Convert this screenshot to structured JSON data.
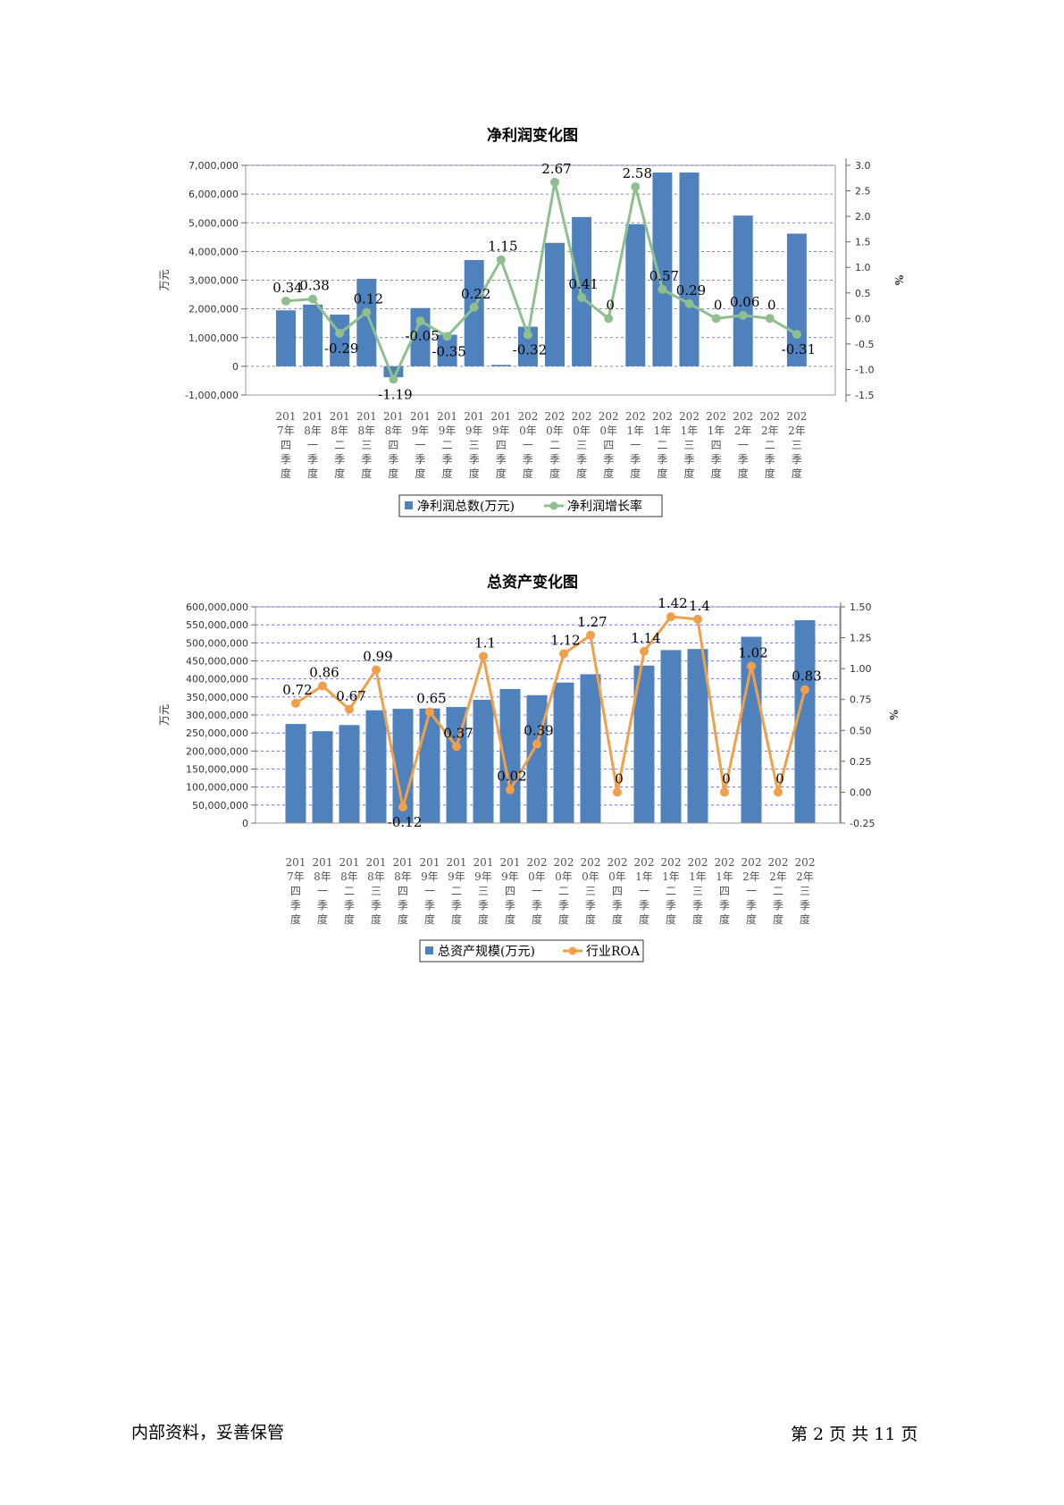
{
  "footer": {
    "left": "内部资料，妥善保管",
    "right": "第 2 页   共 11 页"
  },
  "chart_data": [
    {
      "type": "bar+line",
      "title": "净利润变化图",
      "ylabel": "万元",
      "y2label": "%",
      "categories": [
        "2017年四季度",
        "2018年一季度",
        "2018年二季度",
        "2018年三季度",
        "2018年四季度",
        "2019年一季度",
        "2019年二季度",
        "2019年三季度",
        "2019年四季度",
        "2020年一季度",
        "2020年二季度",
        "2020年三季度",
        "2020年四季度",
        "2021年一季度",
        "2021年二季度",
        "2021年三季度",
        "2021年四季度",
        "2022年一季度",
        "2022年二季度",
        "2022年三季度"
      ],
      "category_lines": [
        [
          "201",
          "7年",
          "四",
          "季",
          "度"
        ],
        [
          "201",
          "8年",
          "一",
          "季",
          "度"
        ],
        [
          "201",
          "8年",
          "二",
          "季",
          "度"
        ],
        [
          "201",
          "8年",
          "三",
          "季",
          "度"
        ],
        [
          "201",
          "8年",
          "四",
          "季",
          "度"
        ],
        [
          "201",
          "9年",
          "一",
          "季",
          "度"
        ],
        [
          "201",
          "9年",
          "二",
          "季",
          "度"
        ],
        [
          "201",
          "9年",
          "三",
          "季",
          "度"
        ],
        [
          "201",
          "9年",
          "四",
          "季",
          "度"
        ],
        [
          "202",
          "0年",
          "一",
          "季",
          "度"
        ],
        [
          "202",
          "0年",
          "二",
          "季",
          "度"
        ],
        [
          "202",
          "0年",
          "三",
          "季",
          "度"
        ],
        [
          "202",
          "0年",
          "四",
          "季",
          "度"
        ],
        [
          "202",
          "1年",
          "一",
          "季",
          "度"
        ],
        [
          "202",
          "1年",
          "二",
          "季",
          "度"
        ],
        [
          "202",
          "1年",
          "三",
          "季",
          "度"
        ],
        [
          "202",
          "1年",
          "四",
          "季",
          "度"
        ],
        [
          "202",
          "2年",
          "一",
          "季",
          "度"
        ],
        [
          "202",
          "2年",
          "二",
          "季",
          "度"
        ],
        [
          "202",
          "2年",
          "三",
          "季",
          "度"
        ]
      ],
      "ylim": [
        -1000000,
        7000000
      ],
      "yticks": [
        -1000000,
        0,
        1000000,
        2000000,
        3000000,
        4000000,
        5000000,
        6000000,
        7000000
      ],
      "yticklabels": [
        "-1,000,000",
        "0",
        "1,000,000",
        "2,000,000",
        "3,000,000",
        "4,000,000",
        "5,000,000",
        "6,000,000",
        "7,000,000"
      ],
      "y2lim": [
        -1.5,
        3.0
      ],
      "y2ticks": [
        -1.5,
        -1.0,
        -0.5,
        0.0,
        0.5,
        1.0,
        1.5,
        2.0,
        2.5,
        3.0
      ],
      "y2ticklabels": [
        "-1.5",
        "-1.0",
        "-0.5",
        "0.0",
        "0.5",
        "1.0",
        "1.5",
        "2.0",
        "2.5",
        "3.0"
      ],
      "series": [
        {
          "name": "净利润总数(万元)",
          "kind": "bar",
          "color": "#4f81bd",
          "values": [
            1950000,
            2150000,
            1800000,
            3050000,
            -380000,
            2030000,
            1100000,
            3700000,
            50000,
            1380000,
            4300000,
            5200000,
            0,
            4950000,
            6750000,
            6750000,
            0,
            5250000,
            0,
            4620000
          ]
        },
        {
          "name": "净利润增长率",
          "kind": "line",
          "color": "#8fbf8f",
          "values": [
            0.34,
            0.38,
            -0.29,
            0.12,
            -1.19,
            -0.05,
            -0.35,
            0.22,
            1.15,
            -0.32,
            2.67,
            0.41,
            0,
            2.58,
            0.57,
            0.29,
            0,
            0.06,
            0,
            -0.31
          ],
          "labels": [
            "0.34",
            "0.38",
            "-0.29",
            "0.12",
            "-1.19",
            "-0.05",
            "-0.35",
            "0.22",
            "1.15",
            "-0.32",
            "2.67",
            "0.41",
            "0",
            "2.58",
            "0.57",
            "0.29",
            "0",
            "0.06",
            "0",
            "-0.31"
          ]
        }
      ],
      "grid": true,
      "legend": "bottom"
    },
    {
      "type": "bar+line",
      "title": "总资产变化图",
      "ylabel": "万元",
      "y2label": "%",
      "categories": [
        "2017年四季度",
        "2018年一季度",
        "2018年二季度",
        "2018年三季度",
        "2018年四季度",
        "2019年一季度",
        "2019年二季度",
        "2019年三季度",
        "2019年四季度",
        "2020年一季度",
        "2020年二季度",
        "2020年三季度",
        "2020年四季度",
        "2021年一季度",
        "2021年二季度",
        "2021年三季度",
        "2021年四季度",
        "2022年一季度",
        "2022年二季度",
        "2022年三季度"
      ],
      "category_lines": [
        [
          "201",
          "7年",
          "四",
          "季",
          "度"
        ],
        [
          "201",
          "8年",
          "一",
          "季",
          "度"
        ],
        [
          "201",
          "8年",
          "二",
          "季",
          "度"
        ],
        [
          "201",
          "8年",
          "三",
          "季",
          "度"
        ],
        [
          "201",
          "8年",
          "四",
          "季",
          "度"
        ],
        [
          "201",
          "9年",
          "一",
          "季",
          "度"
        ],
        [
          "201",
          "9年",
          "二",
          "季",
          "度"
        ],
        [
          "201",
          "9年",
          "三",
          "季",
          "度"
        ],
        [
          "201",
          "9年",
          "四",
          "季",
          "度"
        ],
        [
          "202",
          "0年",
          "一",
          "季",
          "度"
        ],
        [
          "202",
          "0年",
          "二",
          "季",
          "度"
        ],
        [
          "202",
          "0年",
          "三",
          "季",
          "度"
        ],
        [
          "202",
          "0年",
          "四",
          "季",
          "度"
        ],
        [
          "202",
          "1年",
          "一",
          "季",
          "度"
        ],
        [
          "202",
          "1年",
          "二",
          "季",
          "度"
        ],
        [
          "202",
          "1年",
          "三",
          "季",
          "度"
        ],
        [
          "202",
          "1年",
          "四",
          "季",
          "度"
        ],
        [
          "202",
          "2年",
          "一",
          "季",
          "度"
        ],
        [
          "202",
          "2年",
          "二",
          "季",
          "度"
        ],
        [
          "202",
          "2年",
          "三",
          "季",
          "度"
        ]
      ],
      "ylim": [
        0,
        600000000
      ],
      "yticks": [
        0,
        50000000,
        100000000,
        150000000,
        200000000,
        250000000,
        300000000,
        350000000,
        400000000,
        450000000,
        500000000,
        550000000,
        600000000
      ],
      "yticklabels": [
        "0",
        "50,000,000",
        "100,000,000",
        "150,000,000",
        "200,000,000",
        "250,000,000",
        "300,000,000",
        "350,000,000",
        "400,000,000",
        "450,000,000",
        "500,000,000",
        "550,000,000",
        "600,000,000"
      ],
      "y2lim": [
        -0.25,
        1.5
      ],
      "y2ticks": [
        -0.25,
        0.0,
        0.25,
        0.5,
        0.75,
        1.0,
        1.25,
        1.5
      ],
      "y2ticklabels": [
        "-0.25",
        "0.00",
        "0.25",
        "0.50",
        "0.75",
        "1.00",
        "1.25",
        "1.50"
      ],
      "series": [
        {
          "name": "总资产规模(万元)",
          "kind": "bar",
          "color": "#4f81bd",
          "values": [
            275000000,
            255000000,
            272000000,
            313000000,
            317000000,
            318000000,
            322000000,
            342000000,
            372000000,
            355000000,
            390000000,
            413000000,
            0,
            437000000,
            480000000,
            483000000,
            0,
            517000000,
            0,
            563000000
          ]
        },
        {
          "name": "行业ROA",
          "kind": "line",
          "color": "#f0a04b",
          "values": [
            0.72,
            0.86,
            0.67,
            0.99,
            -0.12,
            0.65,
            0.37,
            1.1,
            0.02,
            0.39,
            1.12,
            1.27,
            0,
            1.14,
            1.42,
            1.4,
            0,
            1.02,
            0,
            0.83
          ],
          "labels": [
            "0.72",
            "0.86",
            "0.67",
            "0.99",
            "-0.12",
            "0.65",
            "0.37",
            "1.1",
            "0.02",
            "0.39",
            "1.12",
            "1.27",
            "0",
            "1.14",
            "1.42",
            "1.4",
            "0",
            "1.02",
            "0",
            "0.83"
          ]
        }
      ],
      "grid": true,
      "legend": "bottom"
    }
  ]
}
